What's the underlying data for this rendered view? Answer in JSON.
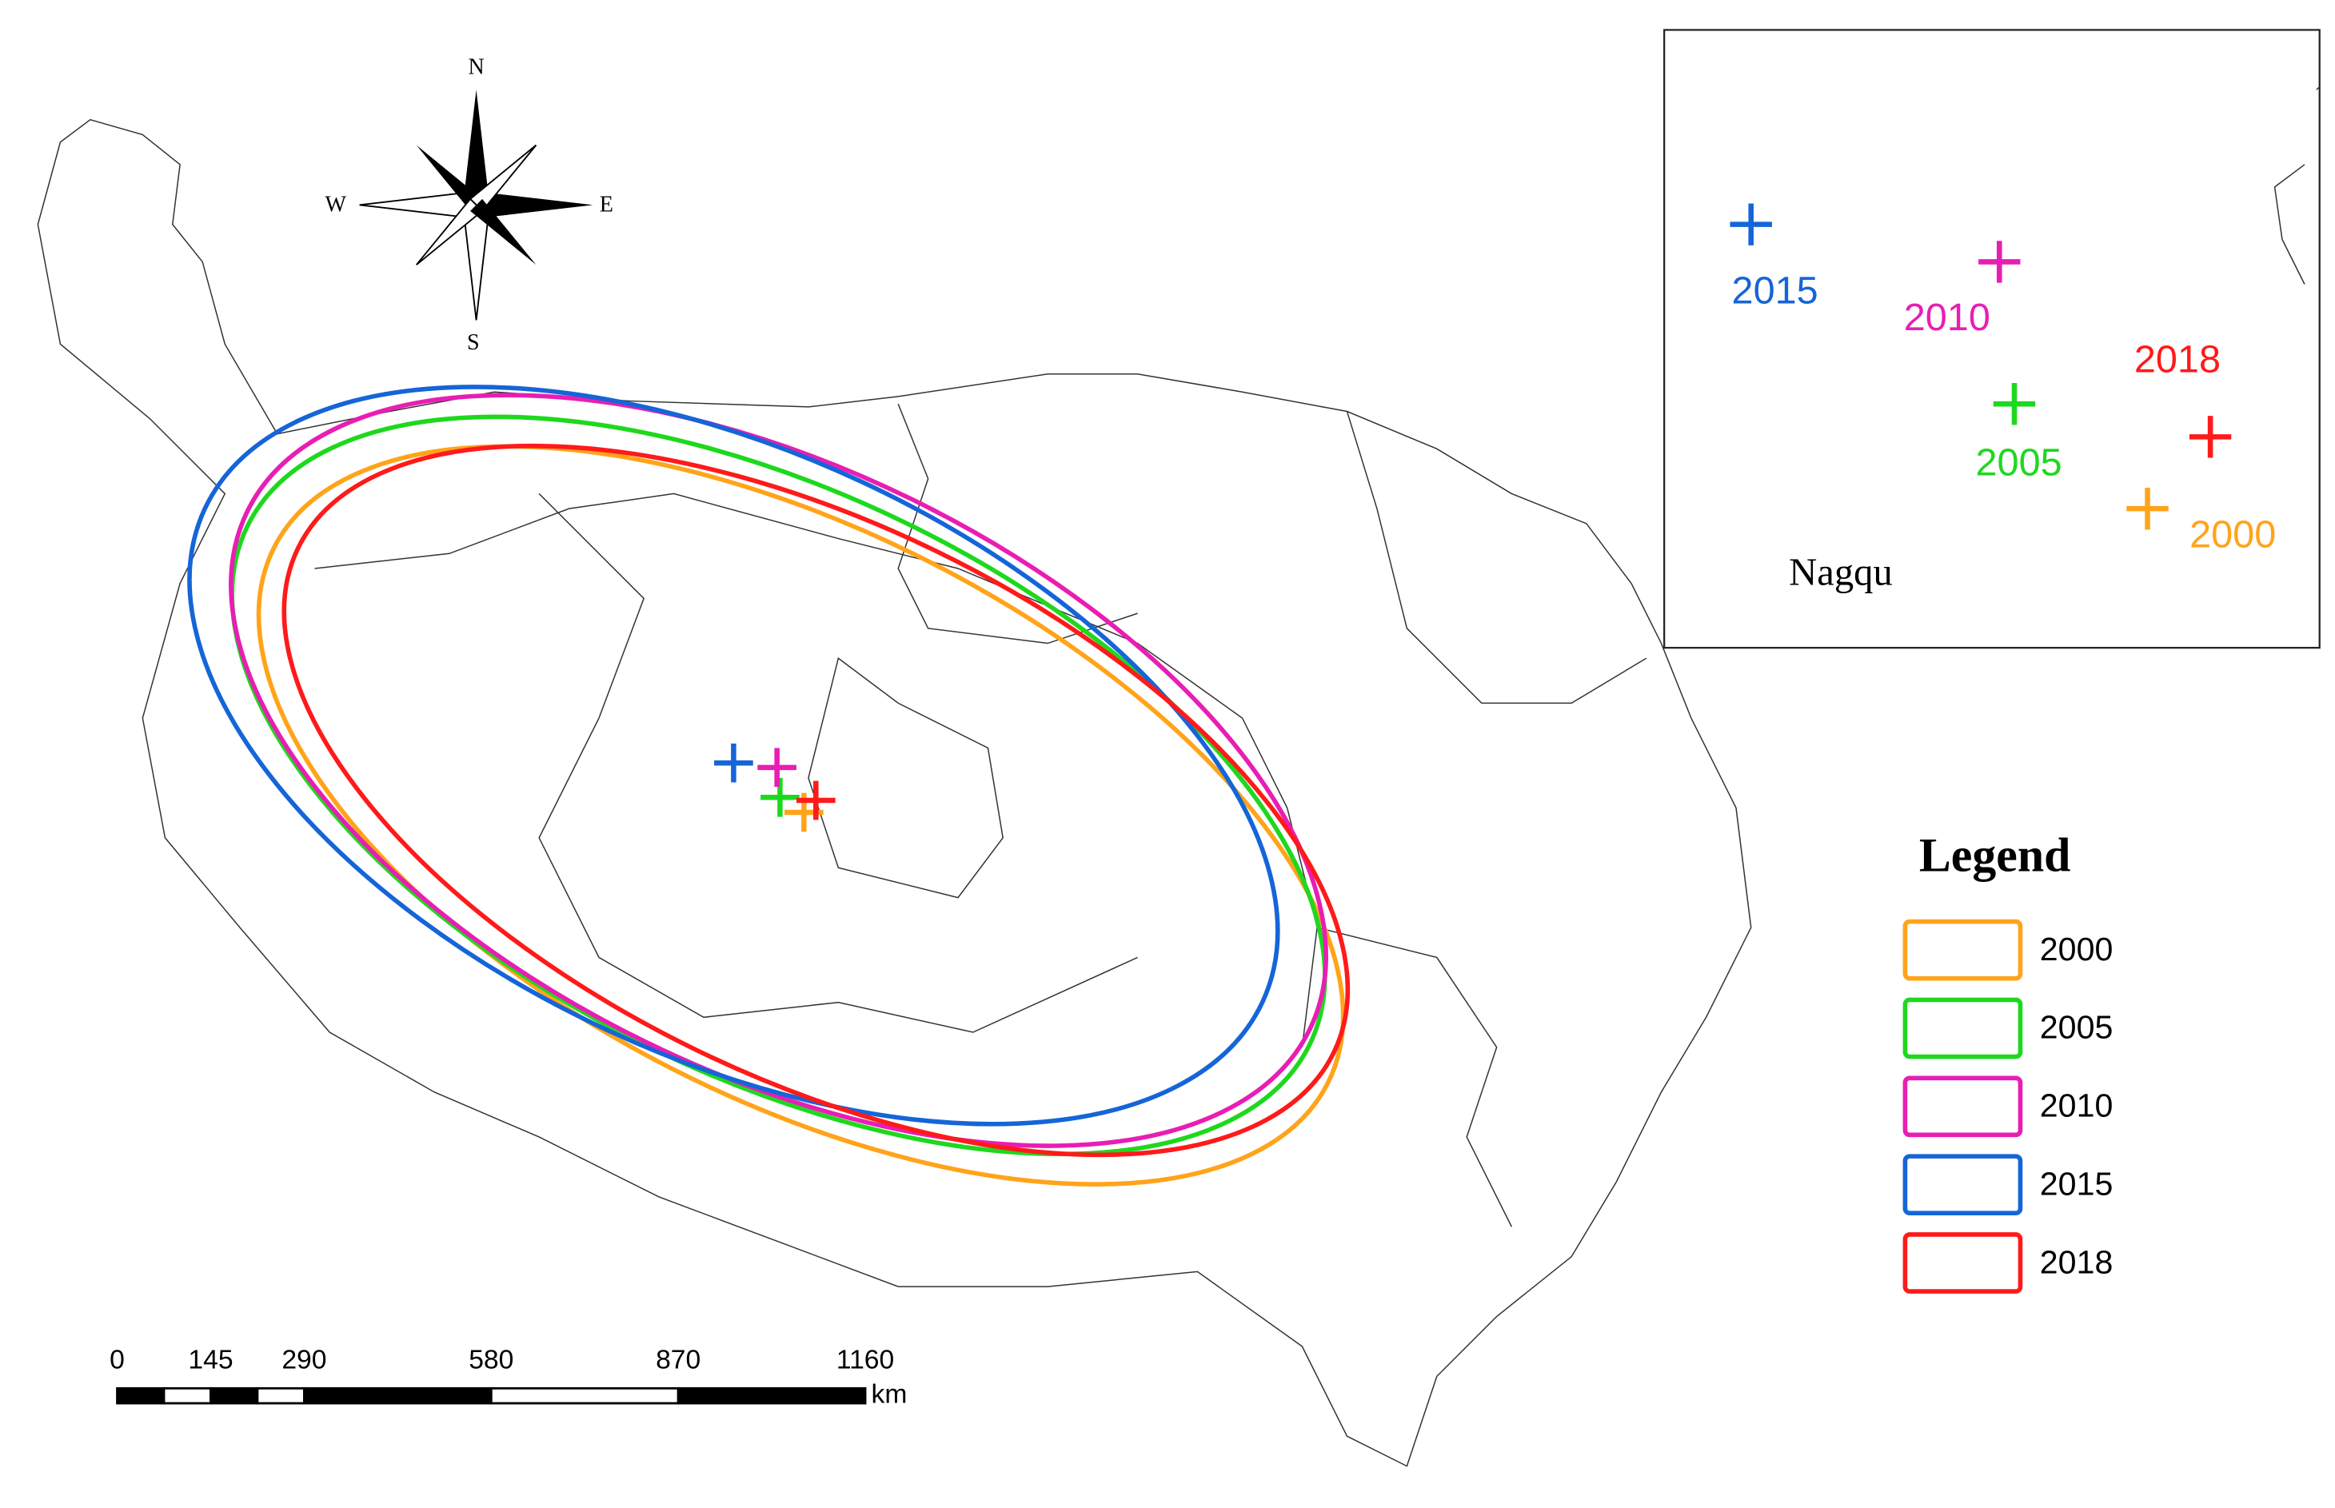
{
  "compass": {
    "north": "N",
    "south": "S",
    "west": "W",
    "east": "E"
  },
  "scale_bar": {
    "ticks": [
      0,
      145,
      290,
      580,
      870,
      1160
    ],
    "unit": "km"
  },
  "inset": {
    "place": "Nagqu",
    "points": [
      {
        "label": "2015",
        "color": "#1565d8"
      },
      {
        "label": "2010",
        "color": "#e81eb4"
      },
      {
        "label": "2018",
        "color": "#ff1a1a"
      },
      {
        "label": "2005",
        "color": "#1ed81e"
      },
      {
        "label": "2000",
        "color": "#ffa41a"
      }
    ]
  },
  "legend": {
    "title": "Legend",
    "items": [
      {
        "label": "2000",
        "color": "#ffa41a"
      },
      {
        "label": "2005",
        "color": "#1ed81e"
      },
      {
        "label": "2010",
        "color": "#e81eb4"
      },
      {
        "label": "2015",
        "color": "#1565d8"
      },
      {
        "label": "2018",
        "color": "#ff1a1a"
      }
    ]
  }
}
